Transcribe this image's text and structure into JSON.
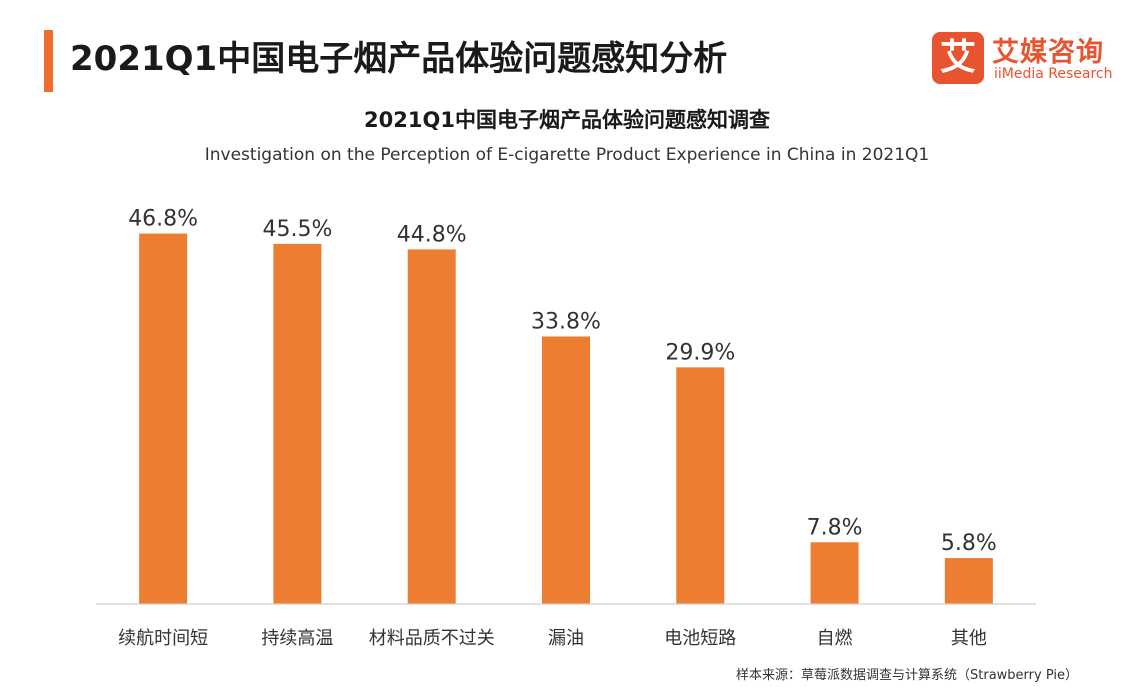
{
  "header": {
    "title": "2021Q1中国电子烟产品体验问题感知分析",
    "accent_color": "#ef6b2e"
  },
  "logo": {
    "mark": "艾",
    "name_cn": "艾媒咨询",
    "name_en": "iiMedia Research",
    "color": "#e8542f"
  },
  "chart_data": {
    "type": "bar",
    "title": "2021Q1中国电子烟产品体验问题感知调查",
    "subtitle": "Investigation on the Perception of E-cigarette Product Experience in China in 2021Q1",
    "categories": [
      "续航时间短",
      "持续高温",
      "材料品质不过关",
      "漏油",
      "电池短路",
      "自燃",
      "其他"
    ],
    "values": [
      46.8,
      45.5,
      44.8,
      33.8,
      29.9,
      7.8,
      5.8
    ],
    "value_labels": [
      "46.8%",
      "45.5%",
      "44.8%",
      "33.8%",
      "29.9%",
      "7.8%",
      "5.8%"
    ],
    "unit": "%",
    "ylim": [
      0,
      47
    ],
    "grid": false,
    "legend": "none",
    "bar_color": "#ed7d31"
  },
  "footer": {
    "source": "样本来源：草莓派数据调查与计算系统（Strawberry Pie）"
  }
}
